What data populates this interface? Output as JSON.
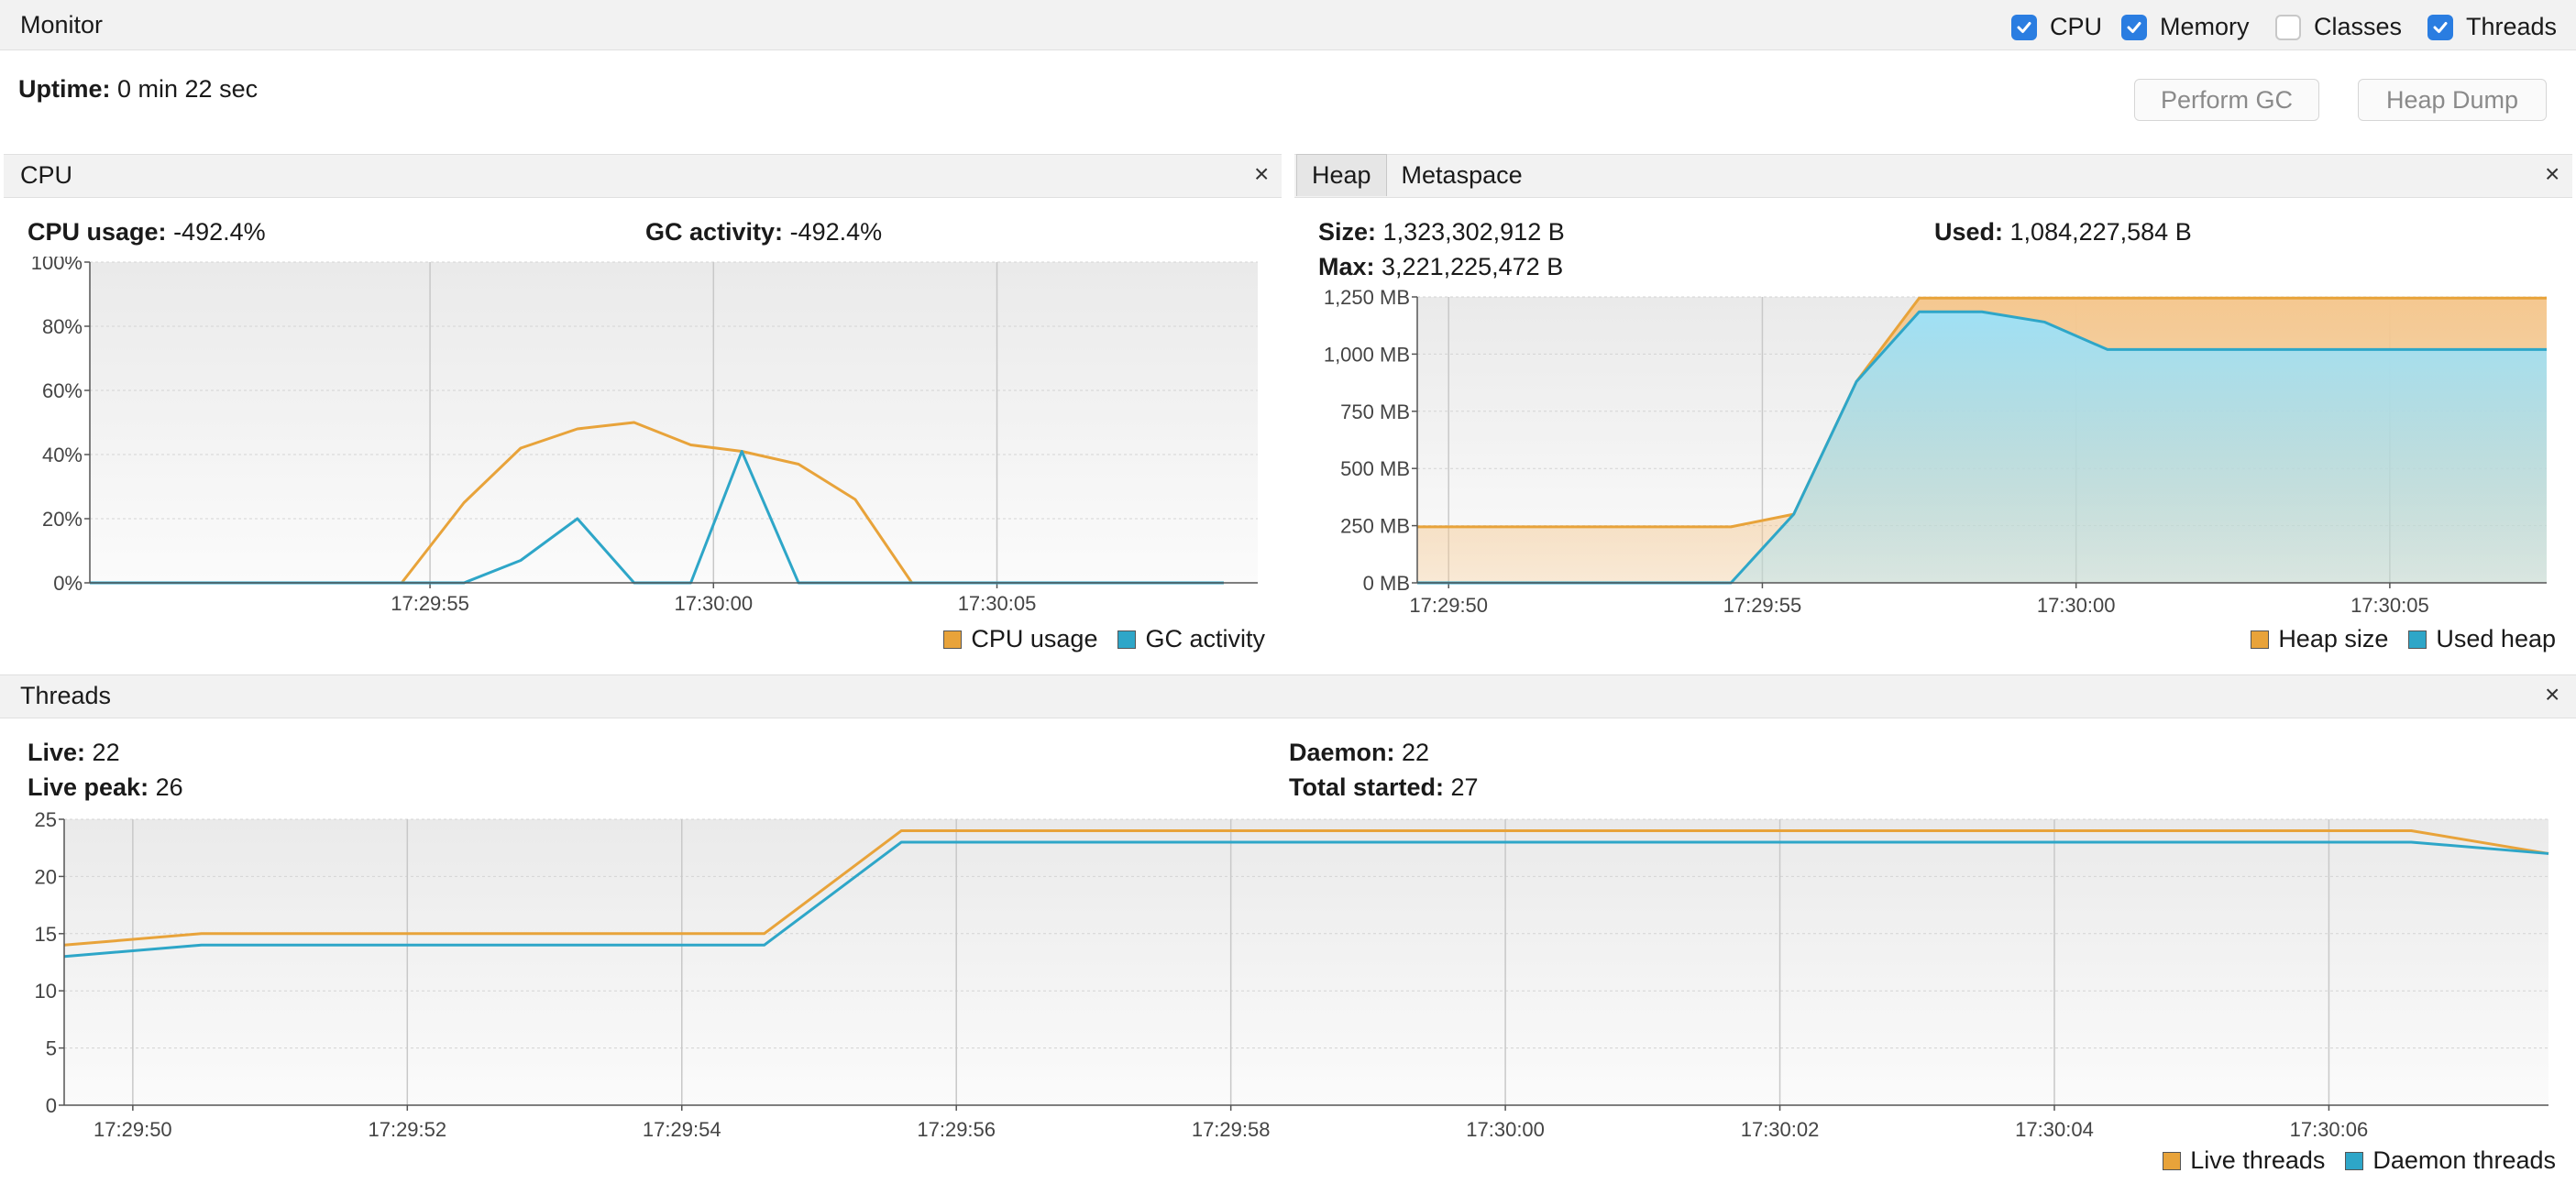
{
  "monitor": {
    "title": "Monitor",
    "checks": [
      {
        "label": "CPU",
        "checked": true
      },
      {
        "label": "Memory",
        "checked": true
      },
      {
        "label": "Classes",
        "checked": false
      },
      {
        "label": "Threads",
        "checked": true
      }
    ],
    "uptime_label": "Uptime:",
    "uptime_value": "0 min 22 sec",
    "perform_gc": "Perform GC",
    "heap_dump": "Heap Dump"
  },
  "cpu_panel": {
    "title": "CPU",
    "close": "×",
    "usage_label": "CPU usage:",
    "usage_value": "-492.4%",
    "gc_label": "GC activity:",
    "gc_value": "-492.4%"
  },
  "heap_panel": {
    "tabs": [
      "Heap",
      "Metaspace"
    ],
    "close": "×",
    "size_label": "Size:",
    "size_value": "1,323,302,912 B",
    "max_label": "Max:",
    "max_value": "3,221,225,472 B",
    "used_label": "Used:",
    "used_value": "1,084,227,584 B"
  },
  "threads_panel": {
    "title": "Threads",
    "close": "×",
    "live_label": "Live:",
    "live_value": "22",
    "peak_label": "Live peak:",
    "peak_value": "26",
    "daemon_label": "Daemon:",
    "daemon_value": "22",
    "total_label": "Total started:",
    "total_value": "27"
  },
  "colors": {
    "orange": "#e8a33a",
    "blue": "#2ea6c8",
    "orange_fill": "#f5c890",
    "blue_fill": "#9fe0f5"
  },
  "chart_data": [
    {
      "id": "cpu",
      "type": "line",
      "x_ticks": [
        "17:29:55",
        "17:30:00",
        "17:30:05"
      ],
      "y_ticks": [
        "0%",
        "20%",
        "40%",
        "60%",
        "80%",
        "100%"
      ],
      "ylim": [
        0,
        100
      ],
      "series": [
        {
          "name": "CPU usage",
          "color": "#e8a33a",
          "x": [
            "17:29:49",
            "17:29:54",
            "17:29:54.5",
            "17:29:55.6",
            "17:29:56.6",
            "17:29:57.6",
            "17:29:58.6",
            "17:29:59.6",
            "17:30:00.5",
            "17:30:01.5",
            "17:30:02.5",
            "17:30:03.5",
            "17:30:09"
          ],
          "values": [
            0,
            0,
            0,
            25,
            42,
            48,
            50,
            43,
            41,
            37,
            26,
            0,
            0
          ]
        },
        {
          "name": "GC activity",
          "color": "#2ea6c8",
          "x": [
            "17:29:49",
            "17:29:55.6",
            "17:29:56.6",
            "17:29:57.6",
            "17:29:58.6",
            "17:29:59.6",
            "17:30:00.5",
            "17:30:01.5",
            "17:30:09"
          ],
          "values": [
            0,
            0,
            7,
            20,
            0,
            0,
            41,
            0,
            0
          ]
        }
      ],
      "legend": [
        "CPU usage",
        "GC activity"
      ],
      "grid": true
    },
    {
      "id": "heap",
      "type": "area",
      "x_ticks": [
        "17:29:50",
        "17:29:55",
        "17:30:00",
        "17:30:05"
      ],
      "y_ticks": [
        "0 MB",
        "250 MB",
        "500 MB",
        "750 MB",
        "1,000 MB",
        "1,250 MB"
      ],
      "ylim": [
        0,
        1250
      ],
      "series": [
        {
          "name": "Heap size",
          "color": "#e8a33a",
          "x": [
            "17:29:49.5",
            "17:29:54.5",
            "17:29:55.5",
            "17:29:56.5",
            "17:29:57.5",
            "17:30:07.5"
          ],
          "values": [
            245,
            245,
            300,
            880,
            1245,
            1245
          ]
        },
        {
          "name": "Used heap",
          "color": "#2ea6c8",
          "x": [
            "17:29:49.5",
            "17:29:54.5",
            "17:29:55.5",
            "17:29:56.5",
            "17:29:57.5",
            "17:29:58.5",
            "17:29:59.5",
            "17:30:00.5",
            "17:30:07.5"
          ],
          "values": [
            0,
            0,
            300,
            880,
            1185,
            1185,
            1140,
            1020,
            1020
          ]
        }
      ],
      "legend": [
        "Heap size",
        "Used heap"
      ],
      "grid": true
    },
    {
      "id": "threads",
      "type": "line",
      "x_ticks": [
        "17:29:50",
        "17:29:52",
        "17:29:54",
        "17:29:56",
        "17:29:58",
        "17:30:00",
        "17:30:02",
        "17:30:04",
        "17:30:06"
      ],
      "y_ticks": [
        "0",
        "5",
        "10",
        "15",
        "20",
        "25"
      ],
      "ylim": [
        0,
        25
      ],
      "series": [
        {
          "name": "Live threads",
          "color": "#e8a33a",
          "x": [
            "17:29:49.5",
            "17:29:50.5",
            "17:29:54.6",
            "17:29:55.6",
            "17:30:06.6",
            "17:30:07.6"
          ],
          "values": [
            14,
            15,
            15,
            24,
            24,
            22
          ]
        },
        {
          "name": "Daemon threads",
          "color": "#2ea6c8",
          "x": [
            "17:29:49.5",
            "17:29:50.5",
            "17:29:54.6",
            "17:29:55.6",
            "17:30:06.6",
            "17:30:07.6"
          ],
          "values": [
            13,
            14,
            14,
            23,
            23,
            22
          ]
        }
      ],
      "legend": [
        "Live threads",
        "Daemon threads"
      ],
      "grid": true
    }
  ]
}
